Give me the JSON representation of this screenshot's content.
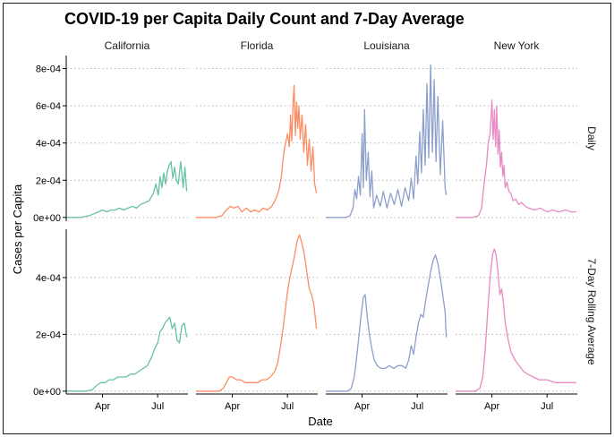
{
  "title": "COVID-19 per Capita Daily Count and 7-Day Average",
  "xlabel": "Date",
  "ylabel": "Cases per Capita",
  "colors": {
    "California": "#66c2a5",
    "Florida": "#fc8d62",
    "Louisiana": "#8da0cb",
    "New York": "#e78ac3"
  },
  "chart_data": {
    "type": "line",
    "facets": {
      "columns": [
        "California",
        "Florida",
        "Louisiana",
        "New York"
      ],
      "rows": [
        "Daily",
        "7-Day Rolling Average"
      ]
    },
    "x_axis": {
      "type": "date",
      "range": [
        "2020-02-01",
        "2020-08-20"
      ],
      "ticks": [
        {
          "date": "2020-04-01",
          "label": "Apr"
        },
        {
          "date": "2020-07-01",
          "label": "Jul"
        }
      ]
    },
    "rows": [
      {
        "name": "Daily",
        "ylim": [
          -2e-05,
          0.00087
        ],
        "y_ticks": [
          {
            "value": 0,
            "label": "0e+00"
          },
          {
            "value": 0.0002,
            "label": "2e-04"
          },
          {
            "value": 0.0004,
            "label": "4e-04"
          },
          {
            "value": 0.0006,
            "label": "6e-04"
          },
          {
            "value": 0.0008,
            "label": "8e-04"
          }
        ],
        "series": [
          {
            "name": "California",
            "x": [
              "2020-02-01",
              "2020-02-25",
              "2020-03-10",
              "2020-03-18",
              "2020-03-25",
              "2020-04-01",
              "2020-04-08",
              "2020-04-15",
              "2020-04-22",
              "2020-04-29",
              "2020-05-06",
              "2020-05-13",
              "2020-05-20",
              "2020-05-27",
              "2020-06-03",
              "2020-06-10",
              "2020-06-17",
              "2020-06-24",
              "2020-06-28",
              "2020-07-02",
              "2020-07-05",
              "2020-07-08",
              "2020-07-11",
              "2020-07-14",
              "2020-07-17",
              "2020-07-20",
              "2020-07-23",
              "2020-07-26",
              "2020-07-29",
              "2020-08-01",
              "2020-08-04",
              "2020-08-08",
              "2020-08-12",
              "2020-08-15",
              "2020-08-18"
            ],
            "y": [
              0,
              0,
              1e-05,
              2e-05,
              3e-05,
              4e-05,
              3e-05,
              4e-05,
              4e-05,
              5e-05,
              4e-05,
              5e-05,
              6e-05,
              5e-05,
              7e-05,
              8e-05,
              9e-05,
              0.00013,
              0.00018,
              0.00012,
              0.00022,
              0.00016,
              0.00024,
              0.00018,
              0.00025,
              0.00028,
              0.0003,
              0.00021,
              0.00027,
              0.0002,
              0.00018,
              0.0003,
              0.00016,
              0.00027,
              0.00014
            ]
          },
          {
            "name": "Florida",
            "x": [
              "2020-02-01",
              "2020-03-05",
              "2020-03-15",
              "2020-03-22",
              "2020-03-29",
              "2020-04-03",
              "2020-04-10",
              "2020-04-17",
              "2020-04-24",
              "2020-05-01",
              "2020-05-08",
              "2020-05-15",
              "2020-05-22",
              "2020-05-29",
              "2020-06-05",
              "2020-06-12",
              "2020-06-17",
              "2020-06-21",
              "2020-06-25",
              "2020-06-28",
              "2020-07-01",
              "2020-07-04",
              "2020-07-06",
              "2020-07-08",
              "2020-07-10",
              "2020-07-12",
              "2020-07-14",
              "2020-07-16",
              "2020-07-18",
              "2020-07-20",
              "2020-07-22",
              "2020-07-25",
              "2020-07-28",
              "2020-07-31",
              "2020-08-03",
              "2020-08-06",
              "2020-08-09",
              "2020-08-12",
              "2020-08-15",
              "2020-08-18"
            ],
            "y": [
              0,
              0,
              1e-05,
              4e-05,
              6e-05,
              5e-05,
              6e-05,
              3e-05,
              5e-05,
              3e-05,
              4e-05,
              3e-05,
              5e-05,
              4e-05,
              6e-05,
              0.0001,
              0.00015,
              0.00022,
              0.00035,
              0.0004,
              0.00045,
              0.00038,
              0.00055,
              0.00041,
              0.0006,
              0.00071,
              0.00044,
              0.00062,
              0.00048,
              0.0006,
              0.00042,
              0.00055,
              0.00035,
              0.0005,
              0.00028,
              0.00042,
              0.00025,
              0.00038,
              0.00018,
              0.00013
            ]
          },
          {
            "name": "Louisiana",
            "x": [
              "2020-02-01",
              "2020-03-05",
              "2020-03-12",
              "2020-03-17",
              "2020-03-20",
              "2020-03-23",
              "2020-03-26",
              "2020-03-29",
              "2020-04-01",
              "2020-04-03",
              "2020-04-05",
              "2020-04-08",
              "2020-04-11",
              "2020-04-14",
              "2020-04-17",
              "2020-04-20",
              "2020-04-25",
              "2020-05-01",
              "2020-05-06",
              "2020-05-12",
              "2020-05-18",
              "2020-05-24",
              "2020-05-30",
              "2020-06-05",
              "2020-06-11",
              "2020-06-17",
              "2020-06-21",
              "2020-06-25",
              "2020-06-29",
              "2020-07-02",
              "2020-07-05",
              "2020-07-08",
              "2020-07-11",
              "2020-07-14",
              "2020-07-17",
              "2020-07-20",
              "2020-07-23",
              "2020-07-26",
              "2020-07-29",
              "2020-08-01",
              "2020-08-04",
              "2020-08-08",
              "2020-08-12",
              "2020-08-16",
              "2020-08-18"
            ],
            "y": [
              0,
              0,
              1e-05,
              5e-05,
              0.00015,
              0.0001,
              0.00022,
              0.00012,
              0.00045,
              0.00016,
              0.00058,
              0.0002,
              0.00035,
              0.00011,
              0.00025,
              5e-05,
              0.00012,
              6e-05,
              0.00014,
              5e-05,
              0.00013,
              7e-05,
              0.00015,
              6e-05,
              0.00016,
              9e-05,
              0.00021,
              0.0001,
              0.00033,
              0.00018,
              0.00046,
              0.00024,
              0.00058,
              0.00028,
              0.00072,
              0.00032,
              0.00082,
              0.00035,
              0.00074,
              0.0003,
              0.00065,
              0.00023,
              0.00052,
              0.00016,
              0.00012
            ]
          },
          {
            "name": "New York",
            "x": [
              "2020-02-01",
              "2020-03-01",
              "2020-03-10",
              "2020-03-15",
              "2020-03-19",
              "2020-03-23",
              "2020-03-26",
              "2020-03-29",
              "2020-04-01",
              "2020-04-03",
              "2020-04-05",
              "2020-04-07",
              "2020-04-09",
              "2020-04-11",
              "2020-04-13",
              "2020-04-15",
              "2020-04-17",
              "2020-04-19",
              "2020-04-21",
              "2020-04-23",
              "2020-04-26",
              "2020-04-29",
              "2020-05-02",
              "2020-05-06",
              "2020-05-10",
              "2020-05-15",
              "2020-05-20",
              "2020-05-26",
              "2020-06-01",
              "2020-06-10",
              "2020-06-20",
              "2020-07-01",
              "2020-07-10",
              "2020-07-20",
              "2020-08-01",
              "2020-08-10",
              "2020-08-18"
            ],
            "y": [
              0,
              0,
              1e-05,
              5e-05,
              0.00018,
              0.00028,
              0.0004,
              0.00045,
              0.00063,
              0.00042,
              0.00058,
              0.00038,
              0.0006,
              0.00034,
              0.00047,
              0.00027,
              0.00035,
              0.00022,
              0.00028,
              0.00016,
              0.00019,
              0.00014,
              0.00013,
              9e-05,
              0.0001,
              7e-05,
              8e-05,
              6e-05,
              5e-05,
              4e-05,
              5e-05,
              3e-05,
              4e-05,
              3e-05,
              4e-05,
              3e-05,
              3e-05
            ]
          }
        ]
      },
      {
        "name": "7-Day Rolling Average",
        "ylim": [
          -1e-05,
          0.00057
        ],
        "y_ticks": [
          {
            "value": 0,
            "label": "0e+00"
          },
          {
            "value": 0.0002,
            "label": "2e-04"
          },
          {
            "value": 0.0004,
            "label": "4e-04"
          }
        ],
        "series": [
          {
            "name": "California",
            "x": [
              "2020-02-01",
              "2020-03-05",
              "2020-03-15",
              "2020-03-22",
              "2020-03-29",
              "2020-04-05",
              "2020-04-12",
              "2020-04-19",
              "2020-04-26",
              "2020-05-03",
              "2020-05-10",
              "2020-05-17",
              "2020-05-24",
              "2020-05-31",
              "2020-06-07",
              "2020-06-14",
              "2020-06-21",
              "2020-06-26",
              "2020-07-01",
              "2020-07-05",
              "2020-07-09",
              "2020-07-13",
              "2020-07-17",
              "2020-07-21",
              "2020-07-25",
              "2020-07-29",
              "2020-08-02",
              "2020-08-06",
              "2020-08-10",
              "2020-08-14",
              "2020-08-18"
            ],
            "y": [
              0,
              0,
              5e-06,
              2e-05,
              3e-05,
              3e-05,
              4e-05,
              4e-05,
              5e-05,
              5e-05,
              5e-05,
              6e-05,
              6e-05,
              7e-05,
              8e-05,
              9e-05,
              0.00012,
              0.00015,
              0.00017,
              0.00021,
              0.00022,
              0.00024,
              0.00025,
              0.00026,
              0.00022,
              0.00024,
              0.00018,
              0.00017,
              0.00023,
              0.00024,
              0.00019
            ]
          },
          {
            "name": "Florida",
            "x": [
              "2020-02-01",
              "2020-03-10",
              "2020-03-17",
              "2020-03-22",
              "2020-03-27",
              "2020-04-01",
              "2020-04-08",
              "2020-04-15",
              "2020-04-22",
              "2020-04-29",
              "2020-05-06",
              "2020-05-13",
              "2020-05-20",
              "2020-05-27",
              "2020-06-03",
              "2020-06-10",
              "2020-06-15",
              "2020-06-19",
              "2020-06-23",
              "2020-06-27",
              "2020-07-01",
              "2020-07-05",
              "2020-07-09",
              "2020-07-13",
              "2020-07-17",
              "2020-07-21",
              "2020-07-25",
              "2020-07-29",
              "2020-08-02",
              "2020-08-06",
              "2020-08-10",
              "2020-08-14",
              "2020-08-18"
            ],
            "y": [
              0,
              0,
              1e-05,
              3e-05,
              5e-05,
              5e-05,
              4e-05,
              4e-05,
              3e-05,
              3e-05,
              3e-05,
              3e-05,
              4e-05,
              4e-05,
              5e-05,
              7e-05,
              0.0001,
              0.00015,
              0.00021,
              0.00028,
              0.00035,
              0.0004,
              0.00044,
              0.00048,
              0.00053,
              0.00055,
              0.00052,
              0.00048,
              0.00042,
              0.00036,
              0.00034,
              0.0003,
              0.00022
            ]
          },
          {
            "name": "Louisiana",
            "x": [
              "2020-02-01",
              "2020-03-08",
              "2020-03-14",
              "2020-03-19",
              "2020-03-23",
              "2020-03-27",
              "2020-03-31",
              "2020-04-03",
              "2020-04-06",
              "2020-04-09",
              "2020-04-13",
              "2020-04-17",
              "2020-04-21",
              "2020-04-26",
              "2020-05-02",
              "2020-05-09",
              "2020-05-16",
              "2020-05-23",
              "2020-05-30",
              "2020-06-06",
              "2020-06-12",
              "2020-06-17",
              "2020-06-21",
              "2020-06-25",
              "2020-06-29",
              "2020-07-03",
              "2020-07-07",
              "2020-07-11",
              "2020-07-15",
              "2020-07-19",
              "2020-07-23",
              "2020-07-27",
              "2020-07-31",
              "2020-08-04",
              "2020-08-08",
              "2020-08-12",
              "2020-08-16",
              "2020-08-18"
            ],
            "y": [
              0,
              0,
              1e-05,
              5e-05,
              0.00012,
              0.0002,
              0.00028,
              0.00033,
              0.00034,
              0.00027,
              0.0002,
              0.00015,
              0.00011,
              9e-05,
              8e-05,
              8e-05,
              9e-05,
              8e-05,
              9e-05,
              9e-05,
              8e-05,
              0.00011,
              0.00016,
              0.00013,
              0.00019,
              0.00024,
              0.00027,
              0.00026,
              0.00032,
              0.00037,
              0.00042,
              0.00046,
              0.00048,
              0.00045,
              0.0004,
              0.00034,
              0.00028,
              0.00019
            ]
          },
          {
            "name": "New York",
            "x": [
              "2020-02-01",
              "2020-03-05",
              "2020-03-12",
              "2020-03-17",
              "2020-03-21",
              "2020-03-25",
              "2020-03-29",
              "2020-04-02",
              "2020-04-05",
              "2020-04-08",
              "2020-04-11",
              "2020-04-14",
              "2020-04-17",
              "2020-04-20",
              "2020-04-23",
              "2020-04-27",
              "2020-05-02",
              "2020-05-09",
              "2020-05-16",
              "2020-05-23",
              "2020-05-30",
              "2020-06-08",
              "2020-06-18",
              "2020-07-01",
              "2020-07-15",
              "2020-08-01",
              "2020-08-18"
            ],
            "y": [
              0,
              0,
              1e-05,
              5e-05,
              0.00015,
              0.00028,
              0.0004,
              0.00048,
              0.0005,
              0.00048,
              0.00042,
              0.00034,
              0.00036,
              0.00031,
              0.00024,
              0.00019,
              0.00014,
              0.00011,
              9e-05,
              7e-05,
              6e-05,
              5e-05,
              4e-05,
              4e-05,
              3e-05,
              3e-05,
              3e-05
            ]
          }
        ]
      }
    ]
  }
}
